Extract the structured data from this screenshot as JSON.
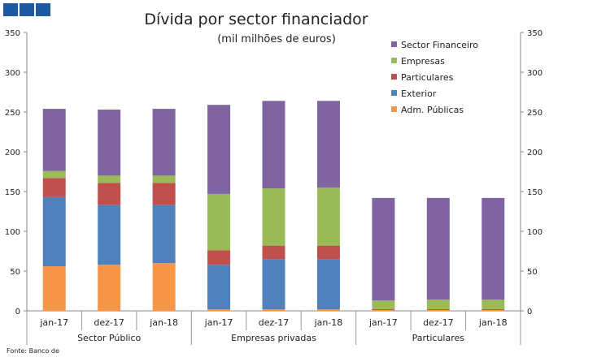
{
  "chart_data": {
    "type": "bar",
    "stacked": true,
    "title": "Dívida por sector financiador",
    "subtitle": "(mil milhões de euros)",
    "ylim": [
      0,
      350
    ],
    "yticks": [
      0,
      50,
      100,
      150,
      200,
      250,
      300,
      350
    ],
    "groups": [
      {
        "label": "Sector Público",
        "categories": [
          "jan-17",
          "dez-17",
          "jan-18"
        ]
      },
      {
        "label": "Empresas privadas",
        "categories": [
          "jan-17",
          "dez-17",
          "jan-18"
        ]
      },
      {
        "label": "Particulares",
        "categories": [
          "jan-17",
          "dez-17",
          "jan-18"
        ]
      }
    ],
    "series": [
      {
        "name": "Adm. Públicas",
        "color": "#f79646",
        "values": [
          56,
          58,
          60,
          2,
          2,
          2,
          1,
          1,
          1
        ]
      },
      {
        "name": "Exterior",
        "color": "#4f81bd",
        "values": [
          87,
          75,
          73,
          56,
          63,
          63,
          0,
          0,
          0
        ]
      },
      {
        "name": "Particulares",
        "color": "#c0504d",
        "values": [
          24,
          28,
          28,
          18,
          17,
          17,
          1,
          1,
          1
        ]
      },
      {
        "name": "Empresas",
        "color": "#9bbb59",
        "values": [
          9,
          9,
          9,
          71,
          72,
          73,
          11,
          12,
          12
        ]
      },
      {
        "name": "Sector Financeiro",
        "color": "#8064a2",
        "values": [
          78,
          83,
          84,
          112,
          110,
          109,
          129,
          128,
          128
        ]
      }
    ],
    "legend_position": "top-right",
    "source": "Fonte: Banco de"
  }
}
